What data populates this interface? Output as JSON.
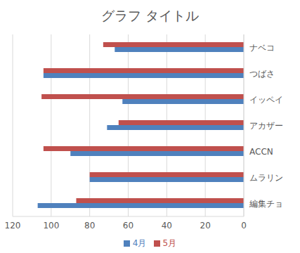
{
  "chart_data": {
    "type": "bar",
    "title": "グラフ タイトル",
    "orientation": "horizontal",
    "categories": [
      "ナベコ",
      "つばさ",
      "イッペイ",
      "アカザー",
      "ACCN",
      "ムラリン",
      "編集チョ"
    ],
    "series": [
      {
        "name": "5月",
        "color": "#c0504d",
        "values": [
          73,
          104,
          105,
          65,
          104,
          80,
          87
        ]
      },
      {
        "name": "4月",
        "color": "#4f81bd",
        "values": [
          67,
          104,
          63,
          71,
          90,
          80,
          107
        ]
      }
    ],
    "xlim": [
      0,
      120
    ],
    "xticks": [
      0,
      20,
      40,
      60,
      80,
      100,
      120
    ],
    "grid": true,
    "legend": "bottom"
  }
}
